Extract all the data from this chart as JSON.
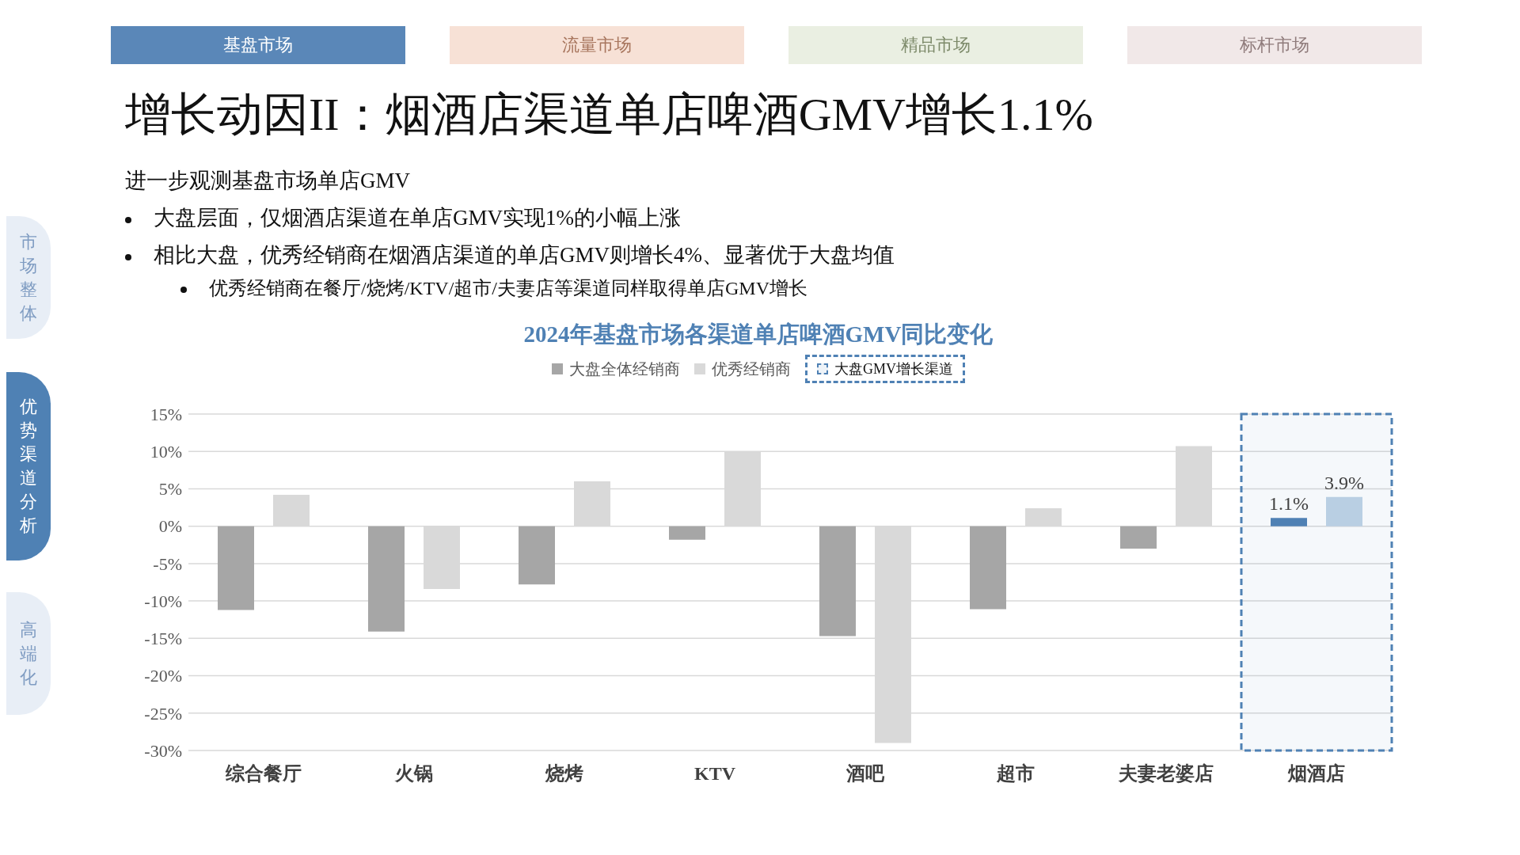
{
  "chart_data": {
    "type": "bar",
    "title": "增长动因II：烟酒店渠道单店啤酒GMV增长1.1%",
    "subtitle": "2024年基盘市场各渠道单店啤酒GMV同比变化",
    "annotations": [
      "基盘市场",
      "流量市场",
      "精品市场",
      "标杆市场",
      "市场整体",
      "优势渠道分析",
      "高端化",
      "进一步观测基盘市场单店GMV",
      "大盘层面，仅烟酒店渠道在单店GMV实现1%的小幅上涨",
      "相比大盘，优秀经销商在烟酒店渠道的单店GMV则增长4%、显著优于大盘均值",
      "优秀经销商在餐厅/烧烤/KTV/超市/夫妻店等渠道同样取得单店GMV增长"
    ],
    "categories": [
      "综合餐厅",
      "火锅",
      "烧烤",
      "KTV",
      "酒吧",
      "超市",
      "夫妻老婆店",
      "烟酒店"
    ],
    "series": [
      {
        "name": "大盘全体经销商",
        "color": "#a6a6a6",
        "colors": [
          "#a6a6a6",
          "#a6a6a6",
          "#a6a6a6",
          "#a6a6a6",
          "#a6a6a6",
          "#a6a6a6",
          "#a6a6a6",
          "#4f81b4"
        ],
        "values": [
          -11.2,
          -14.1,
          -7.8,
          -1.8,
          -14.7,
          -11.1,
          -3.0,
          1.1
        ],
        "value_labels": [
          null,
          null,
          null,
          null,
          null,
          null,
          null,
          "1.1%"
        ]
      },
      {
        "name": "优秀经销商",
        "color": "#d9d9d9",
        "colors": [
          "#d9d9d9",
          "#d9d9d9",
          "#d9d9d9",
          "#d9d9d9",
          "#d9d9d9",
          "#d9d9d9",
          "#d9d9d9",
          "#b9cfe3"
        ],
        "values": [
          4.2,
          -8.4,
          6.0,
          10.0,
          -29.0,
          2.4,
          10.7,
          3.9
        ],
        "value_labels": [
          null,
          null,
          null,
          null,
          null,
          null,
          null,
          "3.9%"
        ]
      }
    ],
    "bands": [
      {
        "axis": "x",
        "from": "烟酒店",
        "to": "烟酒店",
        "label": "大盘GMV增长渠道",
        "color": "#4f81b4"
      }
    ],
    "ylim": [
      -30,
      15
    ],
    "yticks": [
      {
        "value": -30,
        "label": "-30%"
      },
      {
        "value": -25,
        "label": "-25%"
      },
      {
        "value": -20,
        "label": "-20%"
      },
      {
        "value": -15,
        "label": "-15%"
      },
      {
        "value": -10,
        "label": "-10%"
      },
      {
        "value": -5,
        "label": "-5%"
      },
      {
        "value": 0,
        "label": "0%"
      },
      {
        "value": 5,
        "label": "5%"
      },
      {
        "value": 10,
        "label": "10%"
      },
      {
        "value": 15,
        "label": "15%"
      }
    ],
    "grid": "y",
    "legend": "top"
  }
}
